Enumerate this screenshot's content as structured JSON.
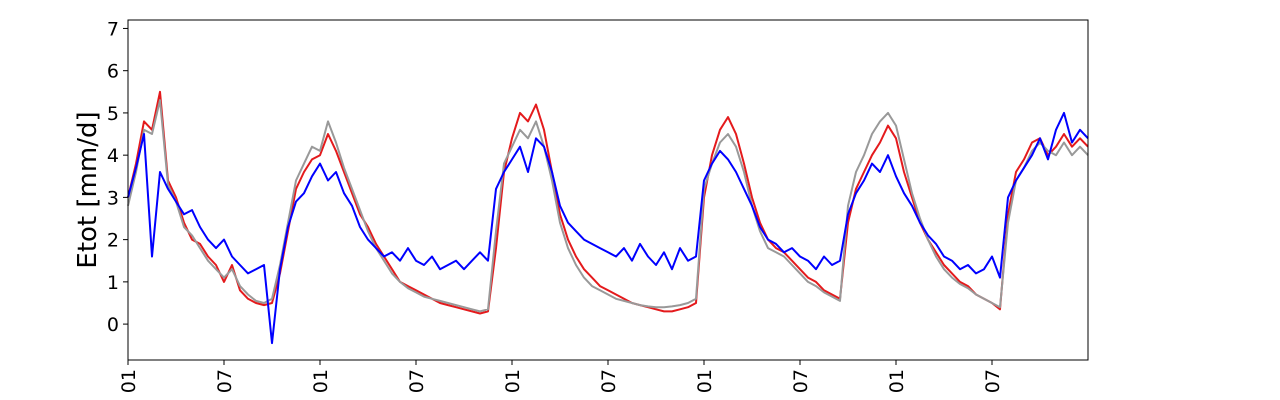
{
  "chart_data": {
    "type": "line",
    "title": "",
    "xlabel": "",
    "ylabel": "Etot [mm/d]",
    "ylim": [
      -0.85,
      7.2
    ],
    "yticks": [
      0,
      1,
      2,
      3,
      4,
      5,
      6,
      7
    ],
    "xlim": [
      0,
      60
    ],
    "xticks": [
      {
        "x": 0,
        "label": "01"
      },
      {
        "x": 6,
        "label": "07"
      },
      {
        "x": 12,
        "label": "01"
      },
      {
        "x": 18,
        "label": "07"
      },
      {
        "x": 24,
        "label": "01"
      },
      {
        "x": 30,
        "label": "07"
      },
      {
        "x": 36,
        "label": "01"
      },
      {
        "x": 42,
        "label": "07"
      },
      {
        "x": 48,
        "label": "01"
      },
      {
        "x": 54,
        "label": "07"
      }
    ],
    "grid": false,
    "legend": "none",
    "series": [
      {
        "color": "#e41a1c",
        "x": [
          0,
          0.5,
          1,
          1.5,
          2,
          2.5,
          3,
          3.5,
          4,
          4.5,
          5,
          5.5,
          6,
          6.5,
          7,
          7.5,
          8,
          8.5,
          9,
          9.5,
          10,
          10.5,
          11,
          11.5,
          12,
          12.5,
          13,
          13.5,
          14,
          14.5,
          15,
          15.5,
          16,
          16.5,
          17,
          17.5,
          18,
          18.5,
          19,
          19.5,
          20,
          20.5,
          21,
          21.5,
          22,
          22.5,
          23,
          23.5,
          24,
          24.5,
          25,
          25.5,
          26,
          26.5,
          27,
          27.5,
          28,
          28.5,
          29,
          29.5,
          30,
          30.5,
          31,
          31.5,
          32,
          32.5,
          33,
          33.5,
          34,
          34.5,
          35,
          35.5,
          36,
          36.5,
          37,
          37.5,
          38,
          38.5,
          39,
          39.5,
          40,
          40.5,
          41,
          41.5,
          42,
          42.5,
          43,
          43.5,
          44,
          44.5,
          45,
          45.5,
          46,
          46.5,
          47,
          47.5,
          48,
          48.5,
          49,
          49.5,
          50,
          50.5,
          51,
          51.5,
          52,
          52.5,
          53,
          53.5,
          54,
          54.5,
          55,
          55.5,
          56,
          56.5,
          57,
          57.5,
          58,
          58.5,
          59,
          59.5,
          60
        ],
        "y": [
          3.0,
          3.8,
          4.8,
          4.6,
          5.5,
          3.4,
          3.0,
          2.4,
          2.0,
          1.9,
          1.6,
          1.4,
          1.0,
          1.4,
          0.8,
          0.6,
          0.5,
          0.45,
          0.5,
          1.2,
          2.2,
          3.2,
          3.6,
          3.9,
          4.0,
          4.5,
          4.1,
          3.6,
          3.1,
          2.6,
          2.3,
          1.9,
          1.6,
          1.3,
          1.0,
          0.9,
          0.8,
          0.7,
          0.6,
          0.5,
          0.45,
          0.4,
          0.35,
          0.3,
          0.25,
          0.3,
          1.8,
          3.6,
          4.4,
          5.0,
          4.8,
          5.2,
          4.6,
          3.6,
          2.6,
          2.0,
          1.6,
          1.3,
          1.1,
          0.9,
          0.8,
          0.7,
          0.6,
          0.5,
          0.45,
          0.4,
          0.35,
          0.3,
          0.3,
          0.35,
          0.4,
          0.5,
          3.0,
          4.0,
          4.6,
          4.9,
          4.5,
          3.8,
          3.0,
          2.4,
          2.0,
          1.8,
          1.7,
          1.5,
          1.3,
          1.1,
          1.0,
          0.8,
          0.7,
          0.6,
          2.4,
          3.2,
          3.6,
          4.0,
          4.3,
          4.7,
          4.4,
          3.6,
          3.0,
          2.4,
          2.0,
          1.7,
          1.4,
          1.2,
          1.0,
          0.9,
          0.7,
          0.6,
          0.5,
          0.35,
          2.6,
          3.6,
          3.9,
          4.3,
          4.4,
          4.0,
          4.2,
          4.5,
          4.2,
          4.4,
          4.2
        ]
      },
      {
        "color": "#999999",
        "x": [
          0,
          0.5,
          1,
          1.5,
          2,
          2.5,
          3,
          3.5,
          4,
          4.5,
          5,
          5.5,
          6,
          6.5,
          7,
          7.5,
          8,
          8.5,
          9,
          9.5,
          10,
          10.5,
          11,
          11.5,
          12,
          12.5,
          13,
          13.5,
          14,
          14.5,
          15,
          15.5,
          16,
          16.5,
          17,
          17.5,
          18,
          18.5,
          19,
          19.5,
          20,
          20.5,
          21,
          21.5,
          22,
          22.5,
          23,
          23.5,
          24,
          24.5,
          25,
          25.5,
          26,
          26.5,
          27,
          27.5,
          28,
          28.5,
          29,
          29.5,
          30,
          30.5,
          31,
          31.5,
          32,
          32.5,
          33,
          33.5,
          34,
          34.5,
          35,
          35.5,
          36,
          36.5,
          37,
          37.5,
          38,
          38.5,
          39,
          39.5,
          40,
          40.5,
          41,
          41.5,
          42,
          42.5,
          43,
          43.5,
          44,
          44.5,
          45,
          45.5,
          46,
          46.5,
          47,
          47.5,
          48,
          48.5,
          49,
          49.5,
          50,
          50.5,
          51,
          51.5,
          52,
          52.5,
          53,
          53.5,
          54,
          54.5,
          55,
          55.5,
          56,
          56.5,
          57,
          57.5,
          58,
          58.5,
          59,
          59.5,
          60
        ],
        "y": [
          2.8,
          3.6,
          4.6,
          4.5,
          5.3,
          3.3,
          2.9,
          2.3,
          2.1,
          1.8,
          1.5,
          1.3,
          1.1,
          1.3,
          0.9,
          0.7,
          0.55,
          0.5,
          0.6,
          1.4,
          2.4,
          3.4,
          3.8,
          4.2,
          4.1,
          4.8,
          4.3,
          3.7,
          3.2,
          2.7,
          2.2,
          1.8,
          1.5,
          1.2,
          1.0,
          0.85,
          0.75,
          0.65,
          0.6,
          0.55,
          0.5,
          0.45,
          0.4,
          0.35,
          0.3,
          0.35,
          2.2,
          3.8,
          4.2,
          4.6,
          4.4,
          4.8,
          4.2,
          3.4,
          2.4,
          1.8,
          1.4,
          1.1,
          0.9,
          0.8,
          0.7,
          0.6,
          0.55,
          0.5,
          0.45,
          0.42,
          0.4,
          0.4,
          0.42,
          0.45,
          0.5,
          0.6,
          3.2,
          3.8,
          4.3,
          4.5,
          4.2,
          3.6,
          2.8,
          2.2,
          1.8,
          1.7,
          1.6,
          1.4,
          1.2,
          1.0,
          0.9,
          0.75,
          0.65,
          0.55,
          2.8,
          3.6,
          4.0,
          4.5,
          4.8,
          5.0,
          4.7,
          3.9,
          3.1,
          2.5,
          2.0,
          1.6,
          1.3,
          1.1,
          0.95,
          0.85,
          0.7,
          0.6,
          0.5,
          0.4,
          2.4,
          3.4,
          3.7,
          4.1,
          4.3,
          4.1,
          4.0,
          4.3,
          4.0,
          4.2,
          4.0
        ]
      },
      {
        "color": "#0000ff",
        "x": [
          0,
          0.5,
          1,
          1.5,
          2,
          2.5,
          3,
          3.5,
          4,
          4.5,
          5,
          5.5,
          6,
          6.5,
          7,
          7.5,
          8,
          8.5,
          9,
          9.5,
          10,
          10.5,
          11,
          11.5,
          12,
          12.5,
          13,
          13.5,
          14,
          14.5,
          15,
          15.5,
          16,
          16.5,
          17,
          17.5,
          18,
          18.5,
          19,
          19.5,
          20,
          20.5,
          21,
          21.5,
          22,
          22.5,
          23,
          23.5,
          24,
          24.5,
          25,
          25.5,
          26,
          26.5,
          27,
          27.5,
          28,
          28.5,
          29,
          29.5,
          30,
          30.5,
          31,
          31.5,
          32,
          32.5,
          33,
          33.5,
          34,
          34.5,
          35,
          35.5,
          36,
          36.5,
          37,
          37.5,
          38,
          38.5,
          39,
          39.5,
          40,
          40.5,
          41,
          41.5,
          42,
          42.5,
          43,
          43.5,
          44,
          44.5,
          45,
          45.5,
          46,
          46.5,
          47,
          47.5,
          48,
          48.5,
          49,
          49.5,
          50,
          50.5,
          51,
          51.5,
          52,
          52.5,
          53,
          53.5,
          54,
          54.5,
          55,
          55.5,
          56,
          56.5,
          57,
          57.5,
          58,
          58.5,
          59,
          59.5,
          60
        ],
        "y": [
          3.0,
          3.7,
          4.5,
          1.6,
          3.6,
          3.2,
          2.9,
          2.6,
          2.7,
          2.3,
          2.0,
          1.8,
          2.0,
          1.6,
          1.4,
          1.2,
          1.3,
          1.4,
          -0.45,
          1.3,
          2.3,
          2.9,
          3.1,
          3.5,
          3.8,
          3.4,
          3.6,
          3.1,
          2.8,
          2.3,
          2.0,
          1.8,
          1.6,
          1.7,
          1.5,
          1.8,
          1.5,
          1.4,
          1.6,
          1.3,
          1.4,
          1.5,
          1.3,
          1.5,
          1.7,
          1.5,
          3.2,
          3.6,
          3.9,
          4.2,
          3.6,
          4.4,
          4.2,
          3.6,
          2.8,
          2.4,
          2.2,
          2.0,
          1.9,
          1.8,
          1.7,
          1.6,
          1.8,
          1.5,
          1.9,
          1.6,
          1.4,
          1.7,
          1.3,
          1.8,
          1.5,
          1.6,
          3.4,
          3.8,
          4.1,
          3.9,
          3.6,
          3.2,
          2.8,
          2.3,
          2.0,
          1.9,
          1.7,
          1.8,
          1.6,
          1.5,
          1.3,
          1.6,
          1.4,
          1.5,
          2.6,
          3.1,
          3.4,
          3.8,
          3.6,
          4.0,
          3.5,
          3.1,
          2.8,
          2.4,
          2.1,
          1.9,
          1.6,
          1.5,
          1.3,
          1.4,
          1.2,
          1.3,
          1.6,
          1.1,
          3.0,
          3.4,
          3.7,
          4.0,
          4.4,
          3.9,
          4.6,
          5.0,
          4.3,
          4.6,
          4.4
        ]
      }
    ]
  }
}
